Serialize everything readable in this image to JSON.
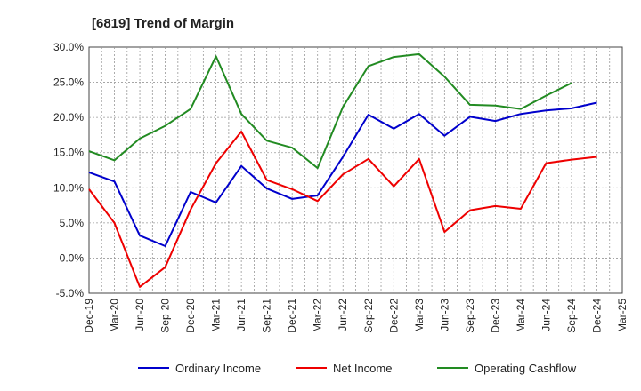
{
  "chart_data": {
    "type": "line",
    "title": "[6819]  Trend of Margin",
    "xlabel": "",
    "ylabel": "",
    "ylim": [
      -5,
      30
    ],
    "yticks": [
      "30.0%",
      "25.0%",
      "20.0%",
      "15.0%",
      "10.0%",
      "5.0%",
      "0.0%",
      "-5.0%"
    ],
    "ytick_values": [
      30,
      25,
      20,
      15,
      10,
      5,
      0,
      -5
    ],
    "xtick_labels": [
      "Dec-19",
      "Mar-20",
      "Jun-20",
      "Sep-20",
      "Dec-20",
      "Mar-21",
      "Jun-21",
      "Sep-21",
      "Dec-21",
      "Mar-22",
      "Jun-22",
      "Sep-22",
      "Dec-22",
      "Mar-23",
      "Jun-23",
      "Sep-23",
      "Dec-23",
      "Mar-24",
      "Jun-24",
      "Sep-24",
      "Dec-24",
      "Mar-25"
    ],
    "grid": true,
    "legend_position": "bottom",
    "series": [
      {
        "name": "Ordinary Income",
        "color": "#0000cc",
        "values": [
          12.2,
          10.9,
          3.2,
          1.7,
          9.4,
          7.9,
          13.1,
          9.9,
          8.4,
          8.9,
          14.4,
          20.4,
          18.4,
          20.5,
          17.4,
          20.1,
          19.5,
          20.5,
          21.0,
          21.3,
          22.1,
          null
        ]
      },
      {
        "name": "Net Income",
        "color": "#ee0000",
        "values": [
          9.8,
          5.0,
          -4.1,
          -1.3,
          6.9,
          13.5,
          18.0,
          11.1,
          9.8,
          8.1,
          11.9,
          14.1,
          10.2,
          14.1,
          3.7,
          6.8,
          7.4,
          7.0,
          13.5,
          14.0,
          14.4,
          null
        ]
      },
      {
        "name": "Operating Cashflow",
        "color": "#228b22",
        "values": [
          15.2,
          13.9,
          17.0,
          18.8,
          21.2,
          28.7,
          20.5,
          16.7,
          15.7,
          12.8,
          21.5,
          27.3,
          28.6,
          29.0,
          25.8,
          21.8,
          21.7,
          21.2,
          23.1,
          24.9,
          null,
          null
        ]
      }
    ]
  }
}
